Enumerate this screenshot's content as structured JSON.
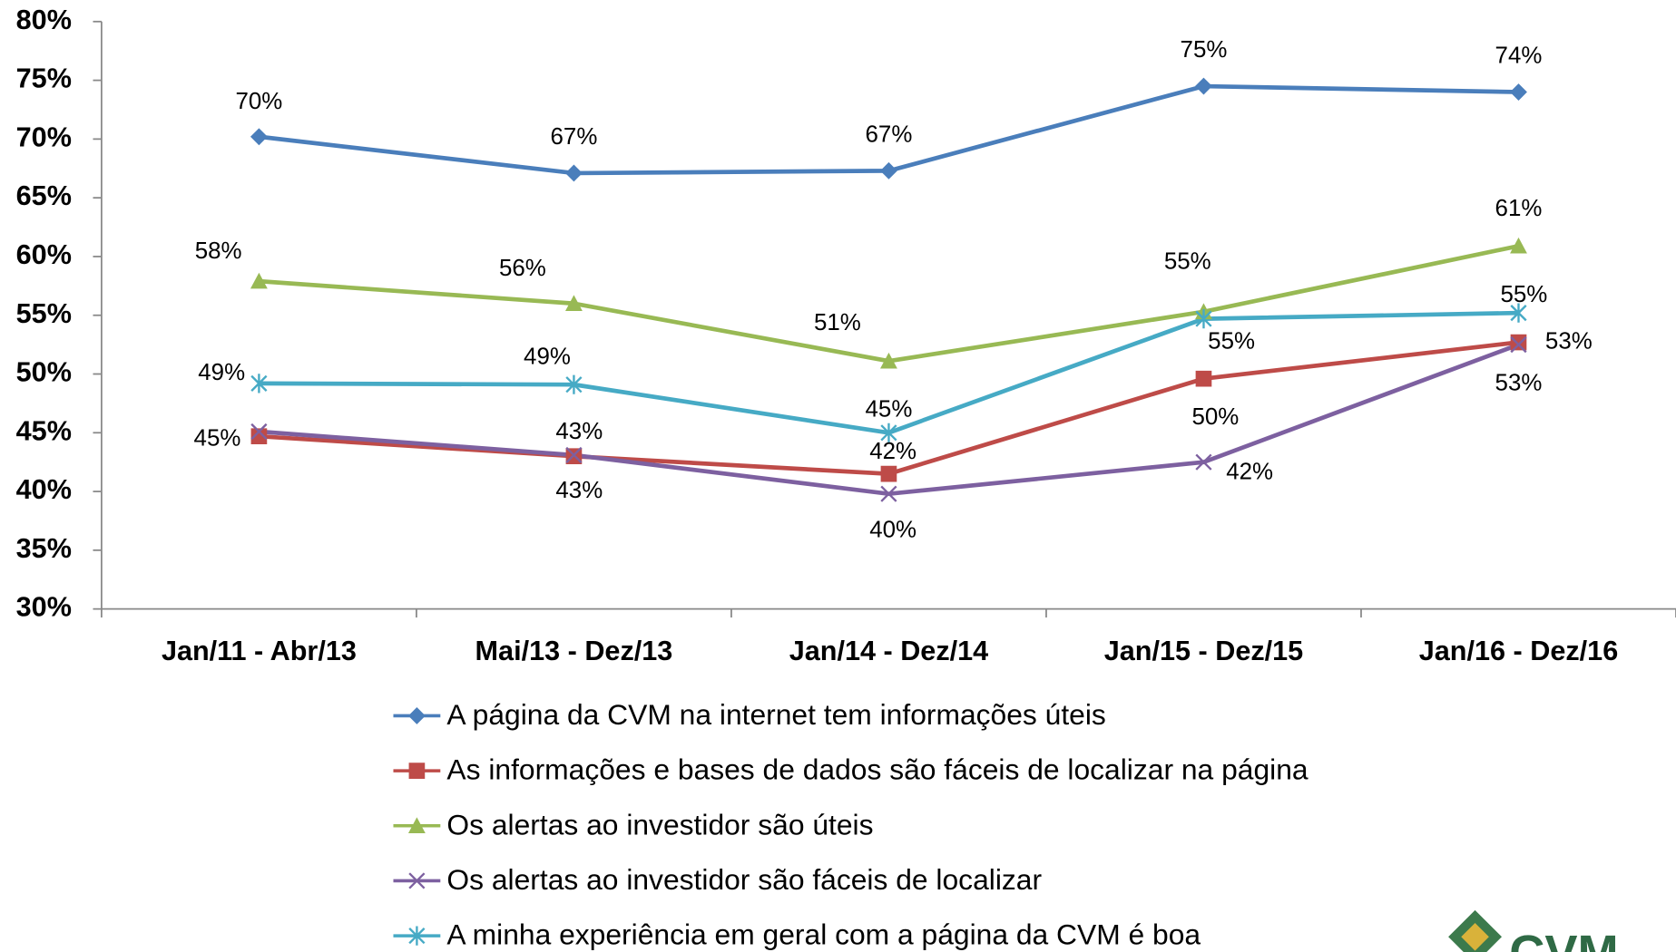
{
  "chart_data": {
    "type": "line",
    "categories": [
      "Jan/11 - Abr/13",
      "Mai/13 - Dez/13",
      "Jan/14 - Dez/14",
      "Jan/15 - Dez/15",
      "Jan/16 - Dez/16"
    ],
    "ylim": [
      30,
      80
    ],
    "yticks": [
      {
        "value": 30,
        "label": "30%"
      },
      {
        "value": 35,
        "label": "35%"
      },
      {
        "value": 40,
        "label": "40%"
      },
      {
        "value": 45,
        "label": "45%"
      },
      {
        "value": 50,
        "label": "50%"
      },
      {
        "value": 55,
        "label": "55%"
      },
      {
        "value": 60,
        "label": "60%"
      },
      {
        "value": 65,
        "label": "65%"
      },
      {
        "value": 70,
        "label": "70%"
      },
      {
        "value": 75,
        "label": "75%"
      },
      {
        "value": 80,
        "label": "80%"
      }
    ],
    "grid": false,
    "series": [
      {
        "name": "A página da CVM na internet tem informações úteis",
        "color": "#4a7ebb",
        "marker": "diamond",
        "values": [
          70.2,
          67.1,
          67.3,
          74.5,
          74.0
        ],
        "value_labels": [
          "70%",
          "67%",
          "67%",
          "75%",
          "74%"
        ]
      },
      {
        "name": "As informações e bases de dados são fáceis de localizar na página",
        "color": "#be4b48",
        "marker": "square",
        "values": [
          44.7,
          43.0,
          41.5,
          49.6,
          52.7
        ],
        "value_labels": [
          "45%",
          "43%",
          "42%",
          "50%",
          "53%"
        ]
      },
      {
        "name": "Os alertas ao investidor são úteis",
        "color": "#98b954",
        "marker": "triangle",
        "values": [
          57.9,
          56.0,
          51.1,
          55.3,
          60.9
        ],
        "value_labels": [
          "58%",
          "56%",
          "51%",
          "55%",
          "61%"
        ]
      },
      {
        "name": "Os alertas ao investidor são fáceis de localizar",
        "color": "#7d60a0",
        "marker": "x",
        "values": [
          45.1,
          43.1,
          39.8,
          42.5,
          52.5
        ],
        "value_labels": [
          null,
          "43%",
          "40%",
          "42%",
          "53%"
        ]
      },
      {
        "name": "A minha experiência em geral com a página da CVM é boa",
        "color": "#46aac5",
        "marker": "star",
        "values": [
          49.2,
          49.1,
          45.0,
          54.7,
          55.2
        ],
        "value_labels": [
          "49%",
          "49%",
          "45%",
          "55%",
          "55%"
        ]
      }
    ],
    "logo": "CVM"
  }
}
